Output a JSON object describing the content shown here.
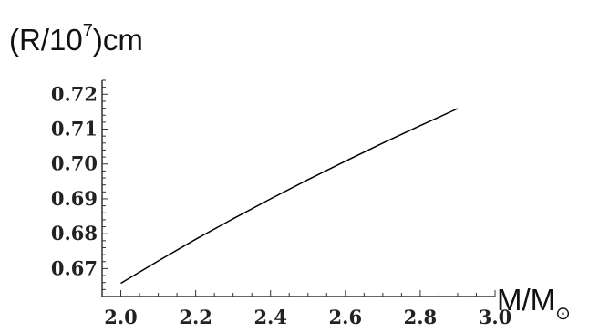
{
  "chart_data": {
    "type": "line",
    "title": "",
    "ylabel": {
      "base": "(R/10",
      "exponent": "7",
      "unit": ")cm"
    },
    "xlabel": {
      "main": "M/M",
      "subscript": "⊙"
    },
    "xlim": [
      1.95,
      3.0
    ],
    "ylim": [
      0.662,
      0.724
    ],
    "x_ticks": [
      2.0,
      2.2,
      2.4,
      2.6,
      2.8,
      3.0
    ],
    "x_tick_labels": [
      "2.0",
      "2.2",
      "2.4",
      "2.6",
      "2.8",
      "3.0"
    ],
    "y_ticks": [
      0.67,
      0.68,
      0.69,
      0.7,
      0.71,
      0.72
    ],
    "y_tick_labels": [
      "0.67",
      "0.68",
      "0.69",
      "0.70",
      "0.71",
      "0.72"
    ],
    "grid": false,
    "series": [
      {
        "x": [
          2.0,
          2.1,
          2.2,
          2.3,
          2.4,
          2.5,
          2.6,
          2.7,
          2.8,
          2.9
        ],
        "values": [
          0.6658,
          0.6722,
          0.6784,
          0.6843,
          0.69,
          0.6955,
          0.7008,
          0.706,
          0.711,
          0.7159
        ],
        "color": "#000000"
      }
    ]
  }
}
